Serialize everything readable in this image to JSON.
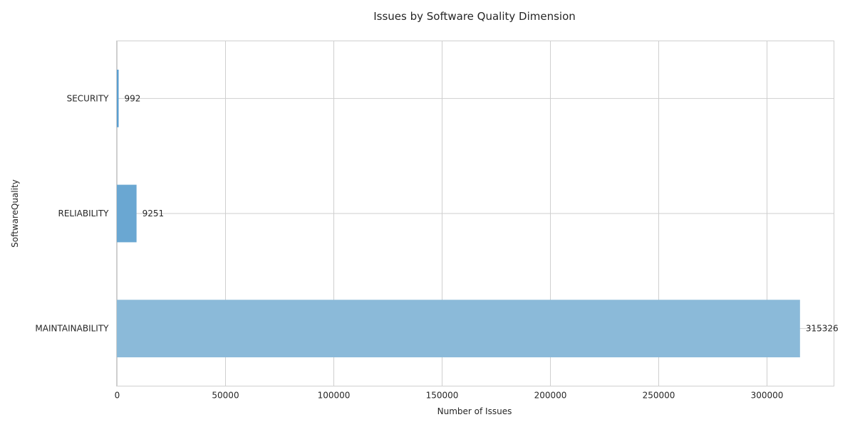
{
  "chart_data": {
    "type": "bar",
    "orientation": "horizontal",
    "title": "Issues by Software Quality Dimension",
    "xlabel": "Number of Issues",
    "ylabel": "SoftwareQuality",
    "categories": [
      "MAINTAINABILITY",
      "RELIABILITY",
      "SECURITY"
    ],
    "values": [
      315326,
      9251,
      992
    ],
    "colors": [
      "#8bbad9",
      "#6aa7d2",
      "#5a9ed0"
    ],
    "xlim": [
      0,
      331000
    ],
    "xticks": [
      0,
      50000,
      100000,
      150000,
      200000,
      250000,
      300000
    ],
    "grid": true,
    "data_labels": true
  }
}
